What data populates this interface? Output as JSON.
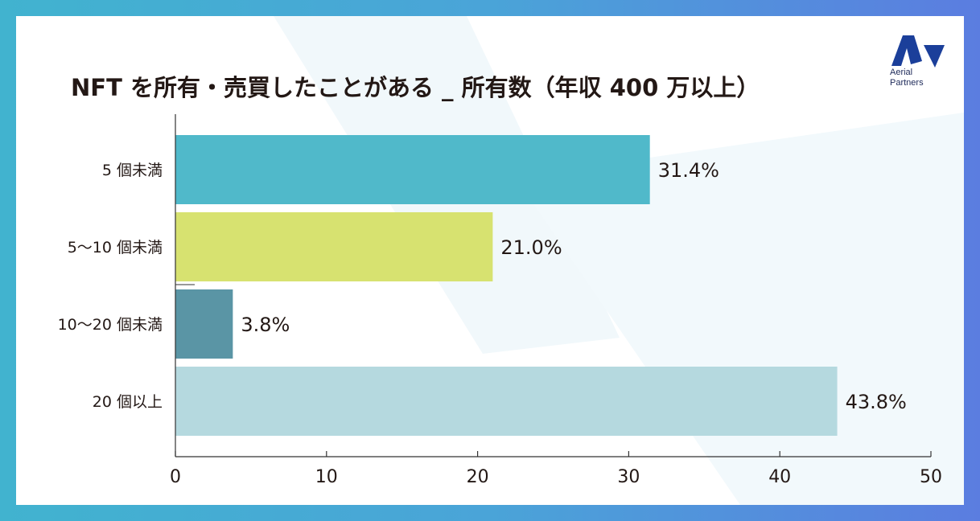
{
  "page": {
    "title": "NFT を所有・売買したことがある _ 所有数（年収 400 万以上）",
    "logo_line1": "Aerial",
    "logo_line2": "Partners"
  },
  "colors": {
    "frame_gradient_start": "#41b3cf",
    "frame_gradient_end": "#5b7de0",
    "logo_blue": "#1b3f9a",
    "axis": "#333333"
  },
  "chart_data": {
    "type": "bar",
    "orientation": "horizontal",
    "title": "NFT を所有・売買したことがある _ 所有数（年収 400 万以上）",
    "categories": [
      "5 個未満",
      "5〜10 個未満",
      "10〜20 個未満",
      "20 個以上"
    ],
    "values": [
      31.4,
      21.0,
      3.8,
      43.8
    ],
    "value_labels": [
      "31.4%",
      "21.0%",
      "3.8%",
      "43.8%"
    ],
    "bar_colors": [
      "#50b9ca",
      "#d7e270",
      "#5a95a5",
      "#b5d9df"
    ],
    "xlim": [
      0,
      50
    ],
    "x_ticks": [
      0,
      10,
      20,
      30,
      40,
      50
    ],
    "xlabel": "",
    "ylabel": "",
    "grid": false,
    "legend": "none"
  }
}
